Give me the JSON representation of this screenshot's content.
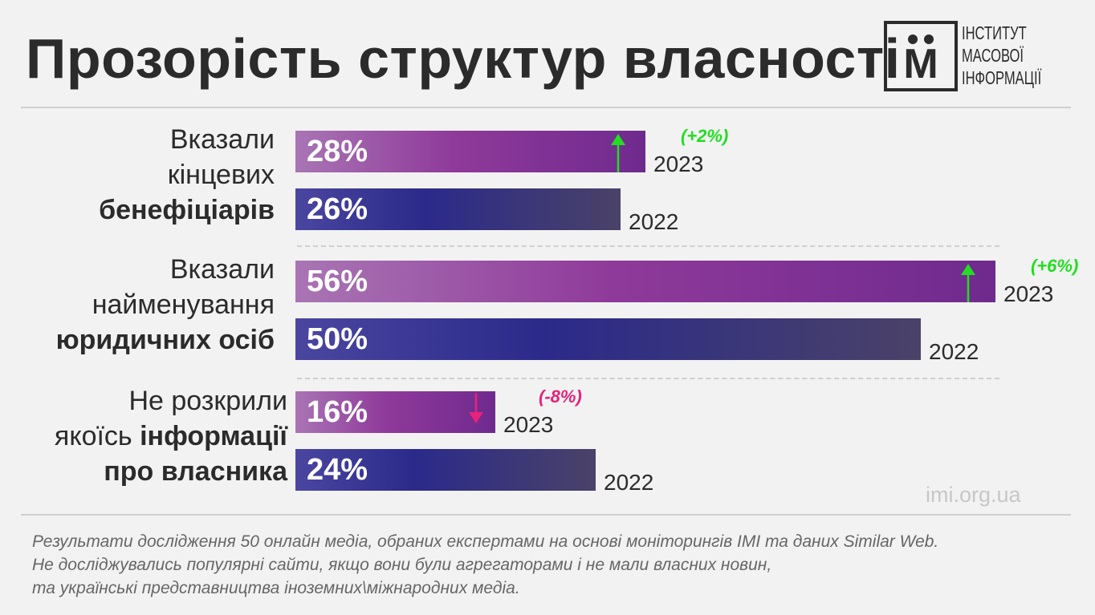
{
  "header": {
    "title": "Прозорість структур власності",
    "logo_letter": "М",
    "logo_lines": [
      "ІНСТИТУТ",
      "МАСОВОЇ",
      "ІНФОРМАЦІЇ"
    ]
  },
  "colors": {
    "bar_2023": "#8f3a9a",
    "bar_2022": "#2b2a8a",
    "increase": "#22dd22",
    "decrease": "#e6227a"
  },
  "chart_data": {
    "type": "bar",
    "orientation": "horizontal",
    "xlim": [
      0,
      56
    ],
    "categories": [
      {
        "label_lines": [
          {
            "text": "Вказали",
            "bold": false
          },
          {
            "text": "кінцевих",
            "bold": false
          },
          {
            "text": "бенефіціарів",
            "bold": true
          }
        ]
      },
      {
        "label_lines": [
          {
            "text": "Вказали",
            "bold": false
          },
          {
            "text": "найменування",
            "bold": false
          },
          {
            "text": "юридичних осіб",
            "bold": true
          }
        ]
      },
      {
        "label_lines": [
          {
            "text": "Не розкрили",
            "bold": false
          },
          {
            "text": "якоїсь ",
            "bold": false,
            "tail": "інформації"
          },
          {
            "text": "про власника",
            "bold": true
          }
        ]
      }
    ],
    "series": [
      {
        "name": "2023",
        "values": [
          28,
          56,
          16
        ],
        "labels": [
          "28%",
          "56%",
          "16%"
        ]
      },
      {
        "name": "2022",
        "values": [
          26,
          50,
          24
        ],
        "labels": [
          "26%",
          "50%",
          "24%"
        ]
      }
    ],
    "changes": [
      {
        "text": "(+2%)",
        "direction": "up"
      },
      {
        "text": "(+6%)",
        "direction": "up"
      },
      {
        "text": "(-8%)",
        "direction": "down"
      }
    ]
  },
  "footer": {
    "site": "imi.org.ua",
    "note_lines": [
      "Результати дослідження 50 онлайн медіа, обраних експертами на основі моніторингів ІМІ та даних Similar Web.",
      "Не досліджувались популярні сайти, якщо вони були агрегаторами і не мали власних новин,",
      "та українські представництва іноземних\\міжнародних медіа."
    ]
  }
}
